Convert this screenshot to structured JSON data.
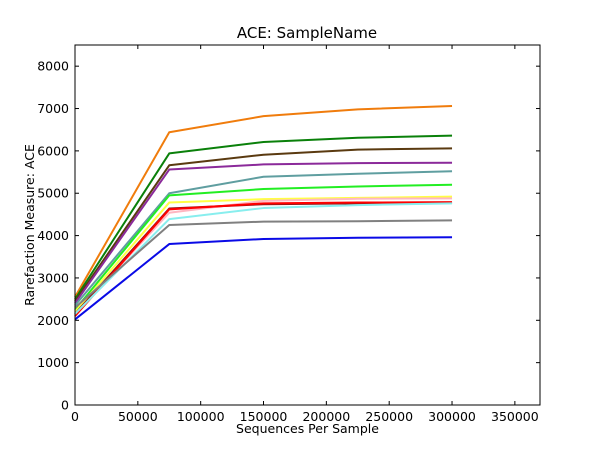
{
  "chart_data": {
    "type": "line",
    "title": "ACE: SampleName",
    "xlabel": "Sequences Per Sample",
    "ylabel": "Rarefaction Measure: ACE",
    "xlim": [
      0,
      370000
    ],
    "ylim": [
      0,
      8500
    ],
    "x_ticks": [
      0,
      50000,
      100000,
      150000,
      200000,
      250000,
      300000,
      350000
    ],
    "y_ticks": [
      0,
      1000,
      2000,
      3000,
      4000,
      5000,
      6000,
      7000,
      8000
    ],
    "grid": false,
    "x": [
      0,
      75000,
      150000,
      225000,
      300000
    ],
    "series": [
      {
        "color": "#f07c0c",
        "values": [
          2550,
          6440,
          6820,
          6980,
          7060
        ]
      },
      {
        "color": "#0a800a",
        "values": [
          2500,
          5940,
          6210,
          6310,
          6360
        ]
      },
      {
        "color": "#5a3a10",
        "values": [
          2450,
          5660,
          5910,
          6030,
          6060
        ]
      },
      {
        "color": "#8b2a9a",
        "values": [
          2400,
          5560,
          5680,
          5710,
          5720
        ]
      },
      {
        "color": "#5f9ea0",
        "values": [
          2350,
          5000,
          5390,
          5460,
          5520
        ]
      },
      {
        "color": "#22ee22",
        "values": [
          2250,
          4950,
          5100,
          5160,
          5200
        ]
      },
      {
        "color": "#ffff44",
        "values": [
          2200,
          4780,
          4860,
          4890,
          4920
        ]
      },
      {
        "color": "#ffb6c1",
        "values": [
          2150,
          4540,
          4820,
          4870,
          4880
        ]
      },
      {
        "color": "#8b1a1a",
        "values": [
          2150,
          4640,
          4740,
          4760,
          4770
        ]
      },
      {
        "color": "#ff0000",
        "values": [
          2100,
          4620,
          4760,
          4780,
          4790
        ]
      },
      {
        "color": "#88eeee",
        "values": [
          2150,
          4390,
          4650,
          4720,
          4760
        ]
      },
      {
        "color": "#808080",
        "values": [
          2300,
          4250,
          4330,
          4340,
          4360
        ]
      },
      {
        "color": "#0a0ae6",
        "values": [
          2020,
          3800,
          3920,
          3950,
          3960
        ]
      }
    ]
  }
}
